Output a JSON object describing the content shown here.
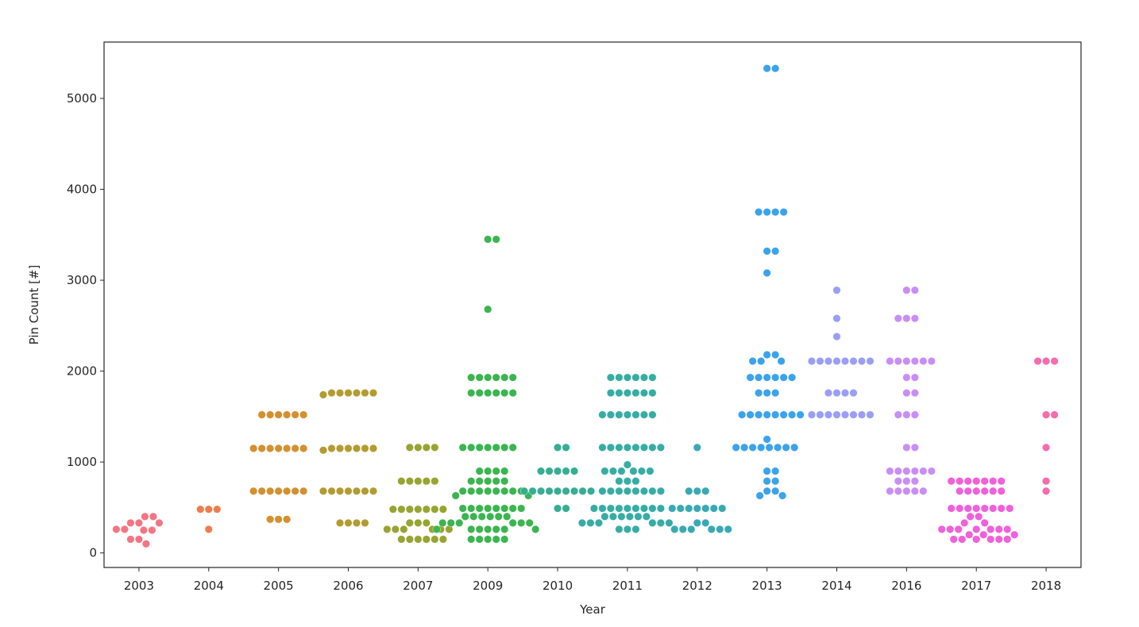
{
  "chart_data": {
    "type": "swarm",
    "x_label": "Year",
    "y_label": "Pin Count [#]",
    "categories": [
      "2003",
      "2004",
      "2005",
      "2006",
      "2007",
      "2009",
      "2010",
      "2011",
      "2012",
      "2013",
      "2014",
      "2016",
      "2017",
      "2018"
    ],
    "colors": [
      "#f37583",
      "#f07c4e",
      "#d4902f",
      "#b39b30",
      "#97a431",
      "#3bb54f",
      "#35ae93",
      "#36ada4",
      "#38aab4",
      "#3ba3ec",
      "#9a9ef5",
      "#c98ef5",
      "#f060dc",
      "#f66cad"
    ],
    "values": [
      [
        330,
        250,
        150,
        330,
        400,
        250,
        100,
        400,
        260,
        150,
        330,
        260
      ],
      [
        480,
        480,
        480,
        260
      ],
      [
        1520,
        1520,
        1520,
        1520,
        1520,
        1520,
        1150,
        1150,
        1150,
        1150,
        1150,
        1150,
        1150,
        680,
        680,
        680,
        680,
        680,
        680,
        680,
        370,
        370,
        370
      ],
      [
        1760,
        1760,
        1760,
        1760,
        1760,
        1760,
        1740,
        1150,
        1150,
        1150,
        1150,
        1150,
        1150,
        1130,
        680,
        680,
        680,
        680,
        680,
        680,
        680,
        330,
        330,
        330,
        330
      ],
      [
        1160,
        1160,
        1160,
        1160,
        790,
        790,
        790,
        790,
        790,
        480,
        480,
        480,
        480,
        480,
        480,
        480,
        330,
        330,
        330,
        260,
        260,
        260,
        260,
        260,
        260,
        150,
        150,
        150,
        150,
        150,
        150
      ],
      [
        3450,
        3450,
        2680,
        1930,
        1930,
        1930,
        1930,
        1930,
        1930,
        1760,
        1760,
        1760,
        1760,
        1760,
        1760,
        1160,
        1160,
        1160,
        1160,
        1160,
        1160,
        1160,
        900,
        900,
        900,
        900,
        790,
        790,
        790,
        790,
        790,
        680,
        680,
        680,
        680,
        680,
        680,
        680,
        680,
        630,
        630,
        490,
        490,
        490,
        490,
        490,
        490,
        490,
        490,
        400,
        400,
        400,
        400,
        400,
        400,
        330,
        330,
        330,
        330,
        330,
        330,
        260,
        260,
        260,
        260,
        260,
        260,
        260,
        150,
        150,
        150,
        150,
        150
      ],
      [
        1160,
        1160,
        900,
        900,
        900,
        900,
        900,
        680,
        680,
        680,
        680,
        680,
        680,
        680,
        680,
        680,
        490,
        490
      ],
      [
        1930,
        1930,
        1930,
        1930,
        1930,
        1930,
        1760,
        1760,
        1760,
        1760,
        1760,
        1760,
        1520,
        1520,
        1520,
        1520,
        1520,
        1520,
        1520,
        1160,
        1160,
        1160,
        1160,
        1160,
        1160,
        1160,
        1160,
        970,
        900,
        900,
        900,
        900,
        900,
        900,
        790,
        790,
        790,
        680,
        680,
        680,
        680,
        680,
        680,
        680,
        680,
        490,
        490,
        490,
        490,
        490,
        490,
        490,
        490,
        490,
        400,
        400,
        400,
        400,
        400,
        400,
        330,
        330,
        330,
        330,
        330,
        330,
        260,
        260,
        260
      ],
      [
        1160,
        680,
        680,
        680,
        490,
        490,
        490,
        490,
        490,
        490,
        490,
        330,
        330,
        260,
        260,
        260,
        260,
        260,
        260
      ],
      [
        5330,
        5330,
        3750,
        3750,
        3750,
        3750,
        3320,
        3320,
        3080,
        2180,
        2180,
        2110,
        2110,
        2110,
        1930,
        1930,
        1930,
        1930,
        1930,
        1930,
        1760,
        1760,
        1760,
        1520,
        1520,
        1520,
        1520,
        1520,
        1520,
        1520,
        1520,
        1250,
        1160,
        1160,
        1160,
        1160,
        1160,
        1160,
        1160,
        1160,
        900,
        900,
        790,
        790,
        680,
        680,
        630,
        630
      ],
      [
        2890,
        2580,
        2380,
        2110,
        2110,
        2110,
        2110,
        2110,
        2110,
        2110,
        2110,
        1760,
        1760,
        1760,
        1760,
        1520,
        1520,
        1520,
        1520,
        1520,
        1520,
        1520,
        1520
      ],
      [
        2890,
        2890,
        2580,
        2580,
        2580,
        2110,
        2110,
        2110,
        2110,
        2110,
        2110,
        1930,
        1930,
        1760,
        1760,
        1520,
        1520,
        1520,
        1160,
        1160,
        900,
        900,
        900,
        900,
        900,
        900,
        790,
        790,
        790,
        680,
        680,
        680,
        680,
        680
      ],
      [
        790,
        790,
        790,
        790,
        790,
        790,
        790,
        680,
        680,
        680,
        680,
        680,
        680,
        490,
        490,
        490,
        490,
        490,
        490,
        490,
        490,
        400,
        400,
        330,
        330,
        260,
        260,
        260,
        260,
        260,
        260,
        260,
        200,
        200,
        200,
        150,
        150,
        150,
        150,
        150,
        150
      ],
      [
        2110,
        2110,
        2110,
        1520,
        1520,
        1160,
        790,
        680
      ]
    ],
    "ylim": [
      -160,
      5620
    ],
    "yticks": [
      0,
      1000,
      2000,
      3000,
      4000,
      5000
    ]
  }
}
